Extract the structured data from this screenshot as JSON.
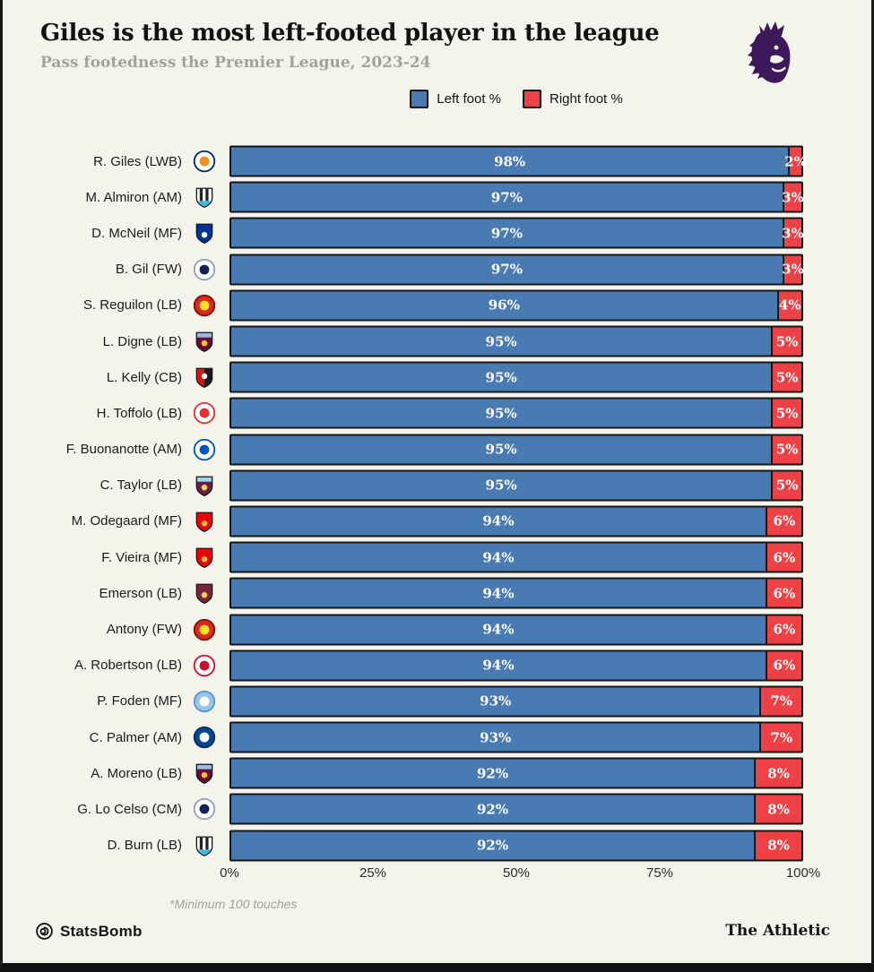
{
  "header": {
    "title": "Giles is the most left-footed player in the league",
    "subtitle": "Pass footedness the Premier League, 2023-24",
    "league_logo_icon": "premier-league-lion-icon",
    "league_logo_color": "#3d195b"
  },
  "legend": {
    "items": [
      {
        "label": "Left foot %",
        "color": "#4a7ab2"
      },
      {
        "label": "Right foot %",
        "color": "#ee4145"
      }
    ]
  },
  "chart_data": {
    "type": "bar",
    "orientation": "horizontal",
    "stacked": true,
    "xlim": [
      0,
      100
    ],
    "x_ticks": [
      "0%",
      "25%",
      "50%",
      "75%",
      "100%"
    ],
    "grid": false,
    "legend_position": "top-center",
    "series": [
      {
        "name": "Left foot %",
        "color": "#4a7ab2"
      },
      {
        "name": "Right foot %",
        "color": "#ee4145"
      }
    ],
    "rows": [
      {
        "player": "R. Giles (LWB)",
        "team": "Luton Town",
        "left": 98,
        "right": 2
      },
      {
        "player": "M. Almiron (AM)",
        "team": "Newcastle United",
        "left": 97,
        "right": 3
      },
      {
        "player": "D. McNeil (MF)",
        "team": "Everton",
        "left": 97,
        "right": 3
      },
      {
        "player": "B. Gil (FW)",
        "team": "Tottenham Hotspur",
        "left": 97,
        "right": 3
      },
      {
        "player": "S. Reguilon (LB)",
        "team": "Manchester United",
        "left": 96,
        "right": 4
      },
      {
        "player": "L. Digne (LB)",
        "team": "Aston Villa",
        "left": 95,
        "right": 5
      },
      {
        "player": "L. Kelly (CB)",
        "team": "Bournemouth",
        "left": 95,
        "right": 5
      },
      {
        "player": "H. Toffolo (LB)",
        "team": "Nottingham Forest",
        "left": 95,
        "right": 5
      },
      {
        "player": "F. Buonanotte (AM)",
        "team": "Brighton",
        "left": 95,
        "right": 5
      },
      {
        "player": "C. Taylor (LB)",
        "team": "Burnley",
        "left": 95,
        "right": 5
      },
      {
        "player": "M. Odegaard (MF)",
        "team": "Arsenal",
        "left": 94,
        "right": 6
      },
      {
        "player": "F. Vieira (MF)",
        "team": "Arsenal",
        "left": 94,
        "right": 6
      },
      {
        "player": "Emerson (LB)",
        "team": "West Ham United",
        "left": 94,
        "right": 6
      },
      {
        "player": "Antony (FW)",
        "team": "Manchester United",
        "left": 94,
        "right": 6
      },
      {
        "player": "A. Robertson (LB)",
        "team": "Liverpool",
        "left": 94,
        "right": 6
      },
      {
        "player": "P. Foden (MF)",
        "team": "Manchester City",
        "left": 93,
        "right": 7
      },
      {
        "player": "C. Palmer (AM)",
        "team": "Chelsea",
        "left": 93,
        "right": 7
      },
      {
        "player": "A. Moreno (LB)",
        "team": "Aston Villa",
        "left": 92,
        "right": 8
      },
      {
        "player": "G. Lo Celso (CM)",
        "team": "Tottenham Hotspur",
        "left": 92,
        "right": 8
      },
      {
        "player": "D. Burn (LB)",
        "team": "Newcastle United",
        "left": 92,
        "right": 8
      }
    ]
  },
  "badges": {
    "Luton Town": {
      "kind": "circle",
      "c1": "#ffffff",
      "c2": "#f78f1e",
      "c3": "#002d62"
    },
    "Newcastle United": {
      "kind": "stripes",
      "c1": "#ffffff",
      "c2": "#241f20",
      "c3": "#41b6e6"
    },
    "Everton": {
      "kind": "shield",
      "c1": "#003399",
      "c2": "#003399",
      "c3": "#ffffff"
    },
    "Tottenham Hotspur": {
      "kind": "circle",
      "c1": "#ffffff",
      "c2": "#132257",
      "c3": "#8fa0bd"
    },
    "Manchester United": {
      "kind": "circle",
      "c1": "#da291c",
      "c2": "#fbe122",
      "c3": "#7a120c"
    },
    "Aston Villa": {
      "kind": "shield",
      "c1": "#670e36",
      "c2": "#94bee5",
      "c3": "#f9c623"
    },
    "Bournemouth": {
      "kind": "shield2",
      "c1": "#d3151b",
      "c2": "#1a1a1a",
      "c3": "#ffffff"
    },
    "Nottingham Forest": {
      "kind": "circle",
      "c1": "#ffffff",
      "c2": "#e53233",
      "c3": "#e53233"
    },
    "Brighton": {
      "kind": "circle",
      "c1": "#ffffff",
      "c2": "#0057b8",
      "c3": "#0057b8"
    },
    "Burnley": {
      "kind": "shield",
      "c1": "#6c1d45",
      "c2": "#99d6ea",
      "c3": "#f2d658"
    },
    "Arsenal": {
      "kind": "shield",
      "c1": "#ef0107",
      "c2": "#ef0107",
      "c3": "#f6bd3c"
    },
    "West Ham United": {
      "kind": "shield",
      "c1": "#7a263a",
      "c2": "#7a263a",
      "c3": "#f3d459"
    },
    "Liverpool": {
      "kind": "circle",
      "c1": "#ffffff",
      "c2": "#c8102e",
      "c3": "#c8102e"
    },
    "Manchester City": {
      "kind": "circle",
      "c1": "#98c5e9",
      "c2": "#ffffff",
      "c3": "#5a93c4"
    },
    "Chelsea": {
      "kind": "circle",
      "c1": "#034694",
      "c2": "#ffffff",
      "c3": "#032d5e"
    }
  },
  "colors": {
    "left": "#4a7ab2",
    "right": "#ee4145",
    "bar_border": "#161616",
    "background": "#f5f4ec"
  },
  "footnote": "*Minimum 100 touches",
  "footer": {
    "statsbomb_label": "StatsBomb",
    "statsbomb_icon": "statsbomb-spiral-icon",
    "athletic_label": "The Athletic"
  }
}
